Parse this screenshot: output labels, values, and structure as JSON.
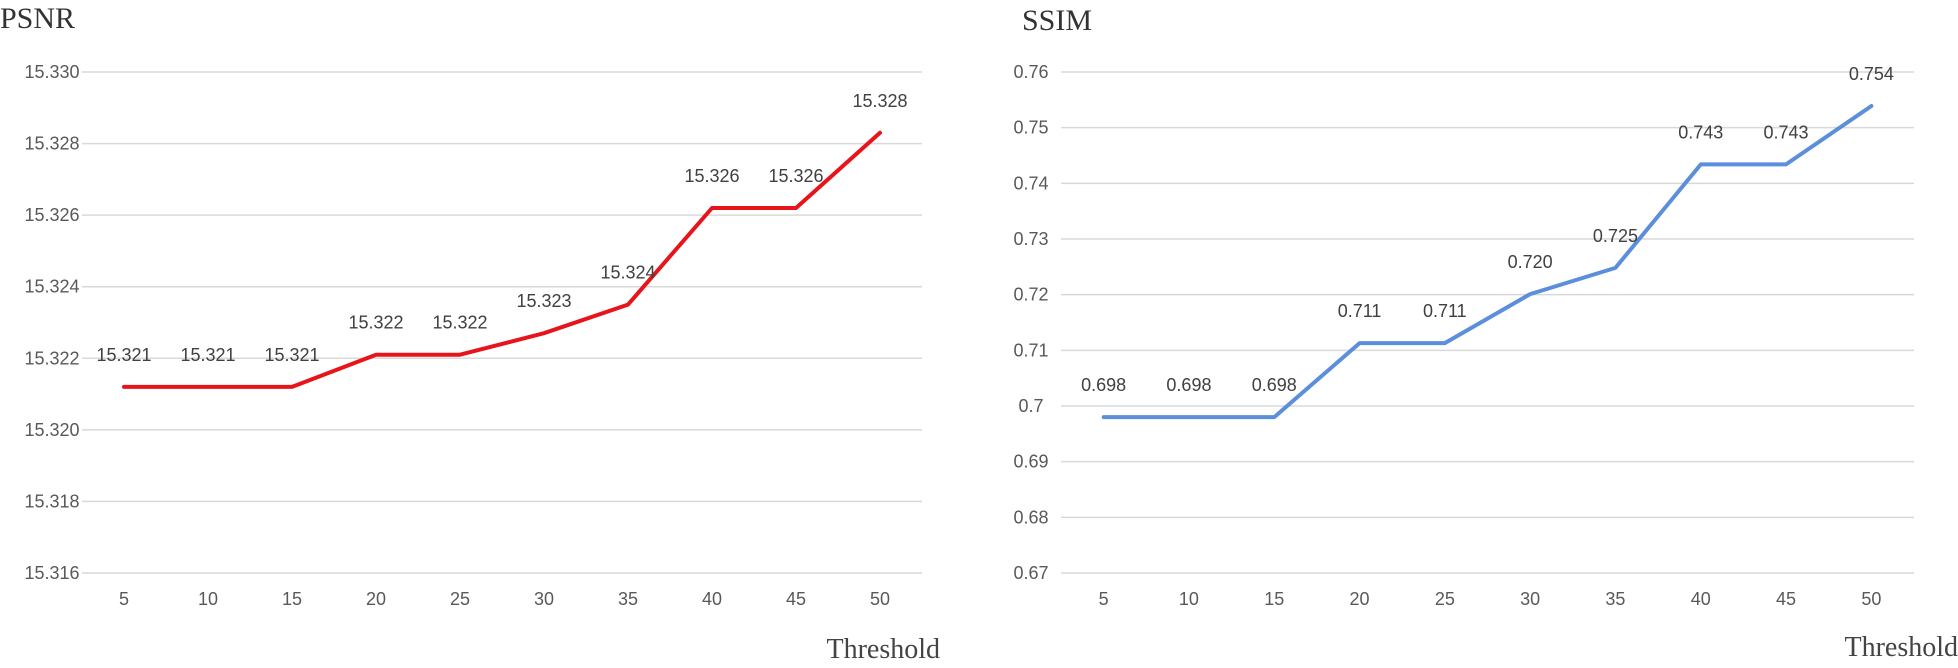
{
  "chart_data": [
    {
      "type": "line",
      "title": "PSNR",
      "xlabel": "Threshold",
      "ylabel": "",
      "categories": [
        "5",
        "10",
        "15",
        "20",
        "25",
        "30",
        "35",
        "40",
        "45",
        "50"
      ],
      "ylim": [
        15.316,
        15.33
      ],
      "yticks": [
        "15.316",
        "15.318",
        "15.320",
        "15.322",
        "15.324",
        "15.326",
        "15.328",
        "15.330"
      ],
      "grid": true,
      "legend": "none",
      "series": [
        {
          "color": "#e8141b",
          "values": [
            15.3212,
            15.3212,
            15.3212,
            15.3221,
            15.3221,
            15.3227,
            15.3235,
            15.3262,
            15.3262,
            15.3283
          ],
          "labels": [
            "15.321",
            "15.321",
            "15.321",
            "15.322",
            "15.322",
            "15.323",
            "15.324",
            "15.326",
            "15.326",
            "15.328"
          ]
        }
      ]
    },
    {
      "type": "line",
      "title": "SSIM",
      "xlabel": "Threshold",
      "ylabel": "",
      "categories": [
        "5",
        "10",
        "15",
        "20",
        "25",
        "30",
        "35",
        "40",
        "45",
        "50"
      ],
      "ylim": [
        0.67,
        0.76
      ],
      "yticks": [
        "0.67",
        "0.68",
        "0.69",
        "0.7",
        "0.71",
        "0.72",
        "0.73",
        "0.74",
        "0.75",
        "0.76"
      ],
      "grid": true,
      "legend": "none",
      "series": [
        {
          "color": "#5b8fdb",
          "values": [
            0.698,
            0.698,
            0.698,
            0.7113,
            0.7113,
            0.7201,
            0.7248,
            0.7434,
            0.7434,
            0.7539
          ],
          "labels": [
            "0.698",
            "0.698",
            "0.698",
            "0.711",
            "0.711",
            "0.720",
            "0.725",
            "0.743",
            "0.743",
            "0.754"
          ]
        }
      ]
    }
  ]
}
